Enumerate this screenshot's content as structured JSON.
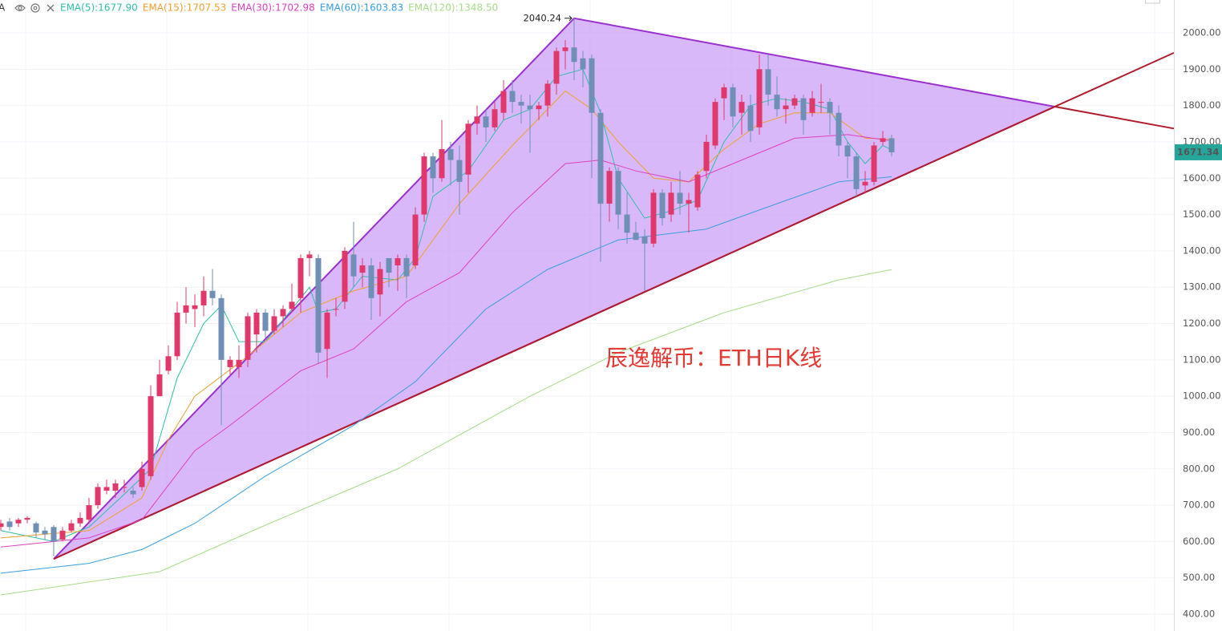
{
  "chart_data": {
    "type": "candlestick",
    "indicator_label": "A",
    "watermark": "辰逸解币：ETH日K线",
    "up_color": "#e0386a",
    "down_color": "#6f8fb6",
    "ylim": [
      353.7,
      2090.5
    ],
    "yticks": [
      {
        "value": 400,
        "label": "400.00"
      },
      {
        "value": 500,
        "label": "500.00"
      },
      {
        "value": 600,
        "label": "600.00"
      },
      {
        "value": 700,
        "label": "700.00"
      },
      {
        "value": 800,
        "label": "800.00"
      },
      {
        "value": 900,
        "label": "900.00"
      },
      {
        "value": 1000,
        "label": "1000.00"
      },
      {
        "value": 1100,
        "label": "1100.00"
      },
      {
        "value": 1200,
        "label": "1200.00"
      },
      {
        "value": 1300,
        "label": "1300.00"
      },
      {
        "value": 1400,
        "label": "1400.00"
      },
      {
        "value": 1500,
        "label": "1500.00"
      },
      {
        "value": 1600,
        "label": "1600.00"
      },
      {
        "value": 1700,
        "label": "1700.00"
      },
      {
        "value": 1800,
        "label": "1800.00"
      },
      {
        "value": 1900,
        "label": "1900.00"
      },
      {
        "value": 2000,
        "label": "2000.00"
      }
    ],
    "grid": true,
    "last_price": 1671.34,
    "last_price_color": "#26a69a",
    "high_marker": 2040.24,
    "open": [
      640,
      655,
      650,
      660,
      650,
      630,
      640,
      605,
      630,
      650,
      660,
      700,
      740,
      740,
      750,
      740,
      750,
      780,
      1000,
      1070,
      1110,
      1230,
      1240,
      1250,
      1290,
      1270,
      1080,
      1080,
      1100,
      1170,
      1230,
      1180,
      1220,
      1240,
      1270,
      1380,
      1380,
      1130,
      1240,
      1260,
      1390,
      1340,
      1360,
      1280,
      1380,
      1360,
      1380,
      1360,
      1500,
      1660,
      1600,
      1680,
      1650,
      1610,
      1750,
      1770,
      1740,
      1780,
      1840,
      1810,
      1800,
      1790,
      1800,
      1860,
      1950,
      1960,
      1930,
      1930,
      1780,
      1530,
      1620,
      1500,
      1450,
      1440,
      1420,
      1560,
      1500,
      1560,
      1530,
      1520,
      1620,
      1690,
      1820,
      1850,
      1780,
      1800,
      1740,
      1900,
      1830,
      1790,
      1800,
      1820,
      1780,
      1810,
      1810,
      1780,
      1690,
      1660,
      1580,
      1590,
      1700,
      1710
    ],
    "high": [
      660,
      665,
      665,
      670,
      655,
      640,
      645,
      640,
      660,
      680,
      720,
      760,
      770,
      770,
      770,
      750,
      820,
      1030,
      1100,
      1140,
      1260,
      1300,
      1280,
      1330,
      1350,
      1280,
      1110,
      1140,
      1230,
      1240,
      1240,
      1240,
      1250,
      1310,
      1390,
      1400,
      1390,
      1240,
      1270,
      1410,
      1480,
      1380,
      1380,
      1370,
      1380,
      1390,
      1390,
      1520,
      1670,
      1670,
      1760,
      1700,
      1690,
      1760,
      1800,
      1790,
      1810,
      1870,
      1870,
      1830,
      1830,
      1810,
      1870,
      1960,
      1980,
      2040.24,
      1950,
      1940,
      1790,
      1630,
      1630,
      1560,
      1480,
      1460,
      1570,
      1570,
      1590,
      1620,
      1560,
      1620,
      1720,
      1820,
      1860,
      1860,
      1830,
      1830,
      1940,
      1940,
      1880,
      1820,
      1830,
      1830,
      1840,
      1860,
      1820,
      1800,
      1700,
      1670,
      1620,
      1700,
      1730,
      1720
    ],
    "low": [
      630,
      630,
      640,
      650,
      610,
      605,
      560,
      600,
      625,
      640,
      650,
      690,
      730,
      720,
      735,
      720,
      740,
      770,
      1000,
      1060,
      1100,
      1200,
      1190,
      1220,
      1250,
      920,
      1060,
      1050,
      1080,
      1120,
      1160,
      1170,
      1190,
      1230,
      1230,
      1330,
      1090,
      1050,
      1220,
      1240,
      1300,
      1300,
      1210,
      1220,
      1300,
      1290,
      1270,
      1350,
      1480,
      1560,
      1590,
      1580,
      1500,
      1560,
      1720,
      1700,
      1730,
      1760,
      1780,
      1750,
      1670,
      1760,
      1770,
      1830,
      1900,
      1870,
      1850,
      1600,
      1370,
      1480,
      1460,
      1420,
      1430,
      1290,
      1410,
      1470,
      1480,
      1500,
      1450,
      1510,
      1600,
      1680,
      1760,
      1740,
      1720,
      1700,
      1720,
      1800,
      1770,
      1750,
      1790,
      1720,
      1770,
      1780,
      1720,
      1660,
      1600,
      1550,
      1560,
      1580,
      1690,
      1660
    ],
    "close": [
      650,
      640,
      660,
      665,
      625,
      620,
      600,
      630,
      650,
      665,
      700,
      750,
      750,
      760,
      750,
      730,
      800,
      1000,
      1060,
      1110,
      1230,
      1250,
      1250,
      1290,
      1270,
      1100,
      1100,
      1100,
      1220,
      1230,
      1180,
      1220,
      1240,
      1260,
      1380,
      1390,
      1120,
      1230,
      1240,
      1400,
      1330,
      1360,
      1270,
      1350,
      1340,
      1380,
      1330,
      1500,
      1660,
      1600,
      1680,
      1650,
      1590,
      1750,
      1770,
      1740,
      1790,
      1840,
      1810,
      1800,
      1790,
      1800,
      1860,
      1950,
      1960,
      1920,
      1900,
      1780,
      1530,
      1620,
      1500,
      1450,
      1430,
      1420,
      1560,
      1490,
      1560,
      1530,
      1540,
      1610,
      1700,
      1810,
      1850,
      1770,
      1810,
      1730,
      1900,
      1830,
      1790,
      1800,
      1820,
      1760,
      1820,
      1810,
      1780,
      1690,
      1660,
      1570,
      1590,
      1690,
      1710,
      1671.34
    ],
    "series": [
      {
        "name": "EMA(5):1677.90",
        "color": "#2fbfa8",
        "x": [
          0,
          6,
          10,
          14,
          17,
          20,
          23,
          25,
          27,
          30,
          33,
          35,
          36,
          38,
          41,
          45,
          47,
          49,
          53,
          57,
          60,
          63,
          66,
          68,
          70,
          73,
          76,
          79,
          82,
          85,
          88,
          91,
          94,
          96,
          98,
          100,
          101
        ],
        "values": [
          630,
          600,
          640,
          730,
          800,
          1050,
          1200,
          1250,
          1150,
          1150,
          1240,
          1300,
          1230,
          1240,
          1330,
          1320,
          1380,
          1550,
          1620,
          1760,
          1790,
          1880,
          1900,
          1780,
          1600,
          1490,
          1510,
          1540,
          1700,
          1800,
          1820,
          1810,
          1790,
          1700,
          1640,
          1690,
          1678
        ]
      },
      {
        "name": "EMA(15):1707.53",
        "color": "#f0a030",
        "x": [
          0,
          10,
          16,
          19,
          22,
          28,
          34,
          40,
          46,
          52,
          58,
          64,
          67,
          70,
          74,
          78,
          82,
          86,
          90,
          94,
          98,
          101
        ],
        "values": [
          610,
          630,
          720,
          880,
          1000,
          1110,
          1230,
          1290,
          1330,
          1530,
          1690,
          1840,
          1790,
          1700,
          1600,
          1590,
          1680,
          1750,
          1780,
          1780,
          1710,
          1707.5
        ]
      },
      {
        "name": "EMA(30):1702.98",
        "color": "#e040c0",
        "x": [
          0,
          10,
          16,
          22,
          26,
          34,
          40,
          46,
          52,
          58,
          64,
          68,
          72,
          78,
          84,
          90,
          96,
          101
        ],
        "values": [
          585,
          610,
          660,
          850,
          920,
          1070,
          1130,
          1260,
          1340,
          1505,
          1640,
          1650,
          1620,
          1590,
          1650,
          1710,
          1720,
          1703
        ]
      },
      {
        "name": "EMA(60):1603.83",
        "color": "#3a9fe0",
        "x": [
          0,
          10,
          16,
          22,
          30,
          40,
          47,
          55,
          62,
          70,
          80,
          88,
          95,
          101
        ],
        "values": [
          513,
          540,
          578,
          650,
          780,
          920,
          1040,
          1240,
          1349,
          1430,
          1460,
          1530,
          1590,
          1603.8
        ]
      },
      {
        "name": "EMA(120):1348.50",
        "color": "#a6dc88",
        "x": [
          0,
          18,
          30,
          45,
          60,
          70,
          82,
          95,
          101
        ],
        "values": [
          453,
          517,
          645,
          800,
          1000,
          1120,
          1230,
          1320,
          1348.5
        ]
      }
    ],
    "triangle": {
      "x": [
        6,
        65,
        119.5
      ],
      "y": [
        552,
        2040.24,
        1797
      ],
      "fill": "#c99cf7",
      "stroke": "#9b30d0",
      "extension_color": "#b01c2c"
    }
  }
}
